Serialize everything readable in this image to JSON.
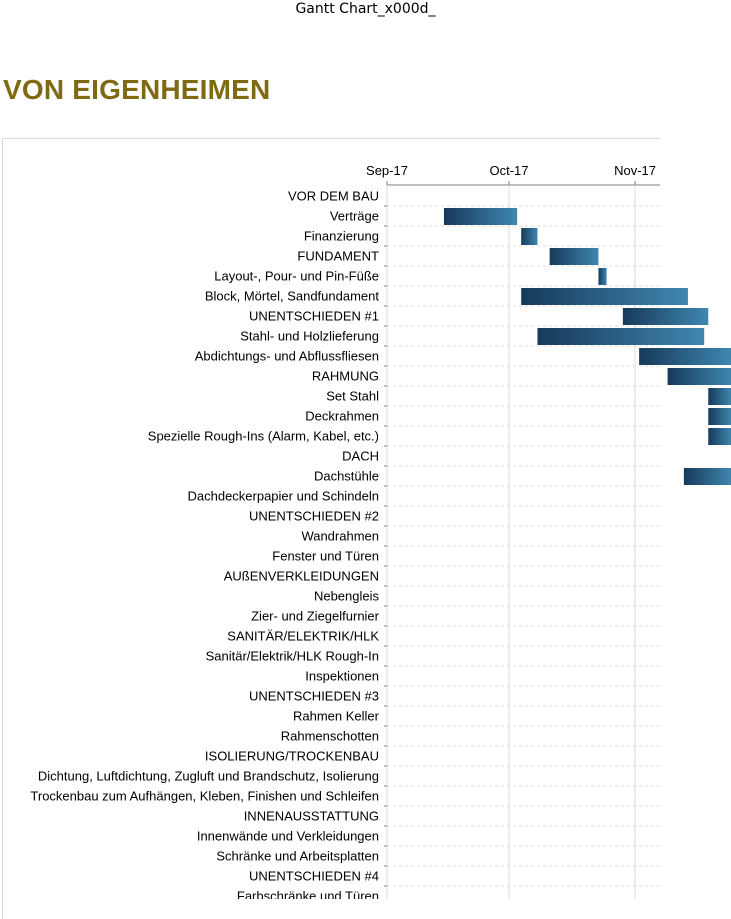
{
  "header": {
    "text": "Gantt Chart_x000d_"
  },
  "title": "VON EIGENHEIMEN",
  "chart_data": {
    "type": "bar",
    "orientation": "horizontal-gantt",
    "xaxis": {
      "ticks": [
        {
          "label": "Sep-17",
          "date": "2017-09-01"
        },
        {
          "label": "Oct-17",
          "date": "2017-10-01"
        },
        {
          "label": "Nov-17",
          "date": "2017-11-01"
        }
      ],
      "grid": "vertical lines, dashed horizontal row lines"
    },
    "colors": {
      "bar_start": "#173a5b",
      "bar_end": "#3f87b0",
      "grid": "#dcdcdc",
      "title": "#7f6a12"
    },
    "tasks": [
      {
        "label": "VOR DEM BAU",
        "start": null,
        "end": null
      },
      {
        "label": "Verträge",
        "start": "2017-09-15",
        "end": "2017-10-03"
      },
      {
        "label": "Finanzierung",
        "start": "2017-10-04",
        "end": "2017-10-08"
      },
      {
        "label": "FUNDAMENT",
        "start": "2017-10-11",
        "end": "2017-10-23"
      },
      {
        "label": "Layout-, Pour- und Pin-Füße",
        "start": "2017-10-23",
        "end": "2017-10-25"
      },
      {
        "label": "Block, Mörtel, Sandfundament",
        "start": "2017-10-04",
        "end": "2017-11-14"
      },
      {
        "label": "UNENTSCHIEDEN #1",
        "start": "2017-10-29",
        "end": "2017-11-19"
      },
      {
        "label": "Stahl- und Holzlieferung",
        "start": "2017-10-08",
        "end": "2017-11-18"
      },
      {
        "label": "Abdichtungs- und Abflussfliesen",
        "start": "2017-11-02",
        "end": "2017-11-26"
      },
      {
        "label": "RAHMUNG",
        "start": "2017-11-09",
        "end": "2017-11-26"
      },
      {
        "label": "Set Stahl",
        "start": "2017-11-19",
        "end": "2017-11-26"
      },
      {
        "label": "Deckrahmen",
        "start": "2017-11-19",
        "end": "2017-11-26"
      },
      {
        "label": "Spezielle Rough-Ins (Alarm, Kabel, etc.)",
        "start": "2017-11-19",
        "end": "2017-11-26"
      },
      {
        "label": "DACH",
        "start": null,
        "end": null
      },
      {
        "label": "Dachstühle",
        "start": "2017-11-13",
        "end": "2017-11-26"
      },
      {
        "label": "Dachdeckerpapier und Schindeln",
        "start": null,
        "end": null
      },
      {
        "label": "UNENTSCHIEDEN #2",
        "start": null,
        "end": null
      },
      {
        "label": "Wandrahmen",
        "start": null,
        "end": null
      },
      {
        "label": "Fenster und Türen",
        "start": null,
        "end": null
      },
      {
        "label": "AUßENVERKLEIDUNGEN",
        "start": null,
        "end": null
      },
      {
        "label": "Nebengleis",
        "start": null,
        "end": null
      },
      {
        "label": "Zier- und Ziegelfurnier",
        "start": null,
        "end": null
      },
      {
        "label": "SANITÄR/ELEKTRIK/HLK",
        "start": null,
        "end": null
      },
      {
        "label": "Sanitär/Elektrik/HLK Rough-In",
        "start": null,
        "end": null
      },
      {
        "label": "Inspektionen",
        "start": null,
        "end": null
      },
      {
        "label": "UNENTSCHIEDEN #3",
        "start": null,
        "end": null
      },
      {
        "label": "Rahmen Keller",
        "start": null,
        "end": null
      },
      {
        "label": "Rahmenschotten",
        "start": null,
        "end": null
      },
      {
        "label": "ISOLIERUNG/TROCKENBAU",
        "start": null,
        "end": null
      },
      {
        "label": "Dichtung, Luftdichtung, Zugluft und Brandschutz, Isolierung",
        "start": null,
        "end": null
      },
      {
        "label": "Trockenbau zum Aufhängen, Kleben, Finishen und Schleifen",
        "start": null,
        "end": null
      },
      {
        "label": "INNENAUSSTATTUNG",
        "start": null,
        "end": null
      },
      {
        "label": "Innenwände und Verkleidungen",
        "start": null,
        "end": null
      },
      {
        "label": "Schränke und Arbeitsplatten",
        "start": null,
        "end": null
      },
      {
        "label": "UNENTSCHIEDEN #4",
        "start": null,
        "end": null
      },
      {
        "label": "Farbschränke und Türen",
        "start": null,
        "end": null
      }
    ]
  }
}
